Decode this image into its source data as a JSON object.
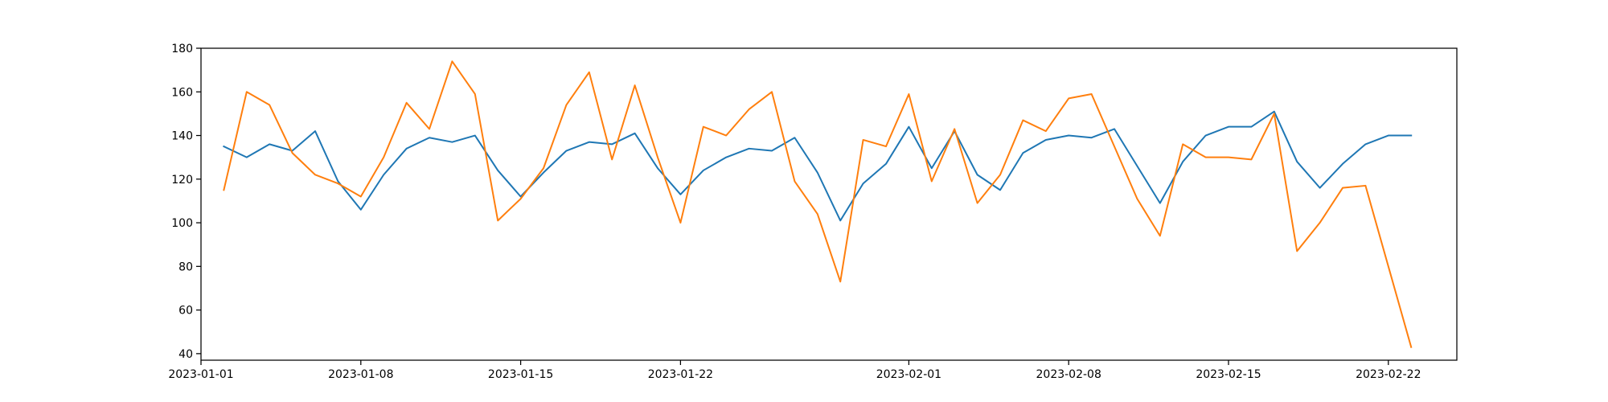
{
  "chart_data": {
    "type": "line",
    "title": "",
    "xlabel": "",
    "ylabel": "",
    "x_axis_type": "date",
    "x_start": "2023-01-02",
    "x_end": "2023-02-23",
    "xlim": [
      "2023-01-01",
      "2023-02-25"
    ],
    "ylim": [
      37,
      180
    ],
    "grid": false,
    "legend": "none",
    "x_ticks": [
      {
        "date": "2023-01-01",
        "label": "2023-01-01"
      },
      {
        "date": "2023-01-08",
        "label": "2023-01-08"
      },
      {
        "date": "2023-01-15",
        "label": "2023-01-15"
      },
      {
        "date": "2023-01-22",
        "label": "2023-01-22"
      },
      {
        "date": "2023-02-01",
        "label": "2023-02-01"
      },
      {
        "date": "2023-02-08",
        "label": "2023-02-08"
      },
      {
        "date": "2023-02-15",
        "label": "2023-02-15"
      },
      {
        "date": "2023-02-22",
        "label": "2023-02-22"
      }
    ],
    "y_ticks": [
      40,
      60,
      80,
      100,
      120,
      140,
      160,
      180
    ],
    "series": [
      {
        "color": "#1f77b4",
        "values": [
          135,
          130,
          136,
          133,
          142,
          119,
          106,
          122,
          134,
          139,
          137,
          140,
          124,
          112,
          123,
          133,
          137,
          136,
          141,
          125,
          113,
          124,
          130,
          134,
          133,
          139,
          123,
          101,
          118,
          127,
          144,
          125,
          142,
          122,
          115,
          132,
          138,
          140,
          139,
          143,
          126,
          109,
          128,
          140,
          144,
          144,
          151,
          128,
          116,
          127,
          136,
          140,
          140
        ]
      },
      {
        "color": "#ff7f0e",
        "values": [
          115,
          160,
          154,
          132,
          122,
          118,
          112,
          130,
          155,
          143,
          174,
          159,
          101,
          111,
          125,
          154,
          169,
          129,
          163,
          130,
          100,
          144,
          140,
          152,
          160,
          119,
          104,
          73,
          138,
          135,
          159,
          119,
          143,
          109,
          122,
          147,
          142,
          157,
          159,
          135,
          111,
          94,
          136,
          130,
          130,
          129,
          150,
          87,
          100,
          116,
          117,
          80,
          43
        ]
      }
    ]
  }
}
